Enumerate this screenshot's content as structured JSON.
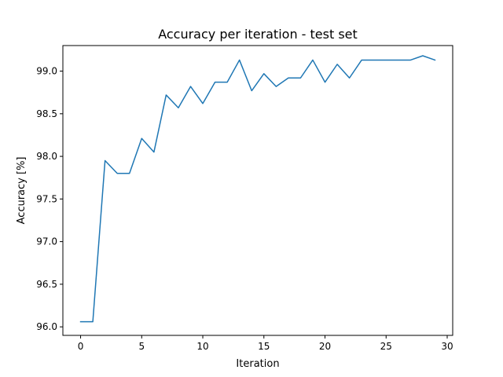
{
  "chart_data": {
    "type": "line",
    "title": "Accuracy per iteration - test set",
    "xlabel": "Iteration",
    "ylabel": "Accuracy [%]",
    "xlim": [
      -1.45,
      30.45
    ],
    "ylim": [
      95.9,
      99.3
    ],
    "grid": false,
    "x_ticks": [
      0,
      5,
      10,
      15,
      20,
      25,
      30
    ],
    "y_ticks": [
      96.0,
      96.5,
      97.0,
      97.5,
      98.0,
      98.5,
      99.0
    ],
    "x_tick_labels": [
      "0",
      "5",
      "10",
      "15",
      "20",
      "25",
      "30"
    ],
    "y_tick_labels": [
      "96.0",
      "96.5",
      "97.0",
      "97.5",
      "98.0",
      "98.5",
      "99.0"
    ],
    "series": [
      {
        "color": "#1f77b4",
        "x": [
          0,
          1,
          2,
          3,
          4,
          5,
          6,
          7,
          8,
          9,
          10,
          11,
          12,
          13,
          14,
          15,
          16,
          17,
          18,
          19,
          20,
          21,
          22,
          23,
          24,
          25,
          26,
          27,
          28,
          29
        ],
        "y": [
          96.06,
          96.06,
          97.95,
          97.8,
          97.8,
          98.21,
          98.05,
          98.72,
          98.57,
          98.82,
          98.62,
          98.87,
          98.87,
          99.13,
          98.77,
          98.97,
          98.82,
          98.92,
          98.92,
          99.13,
          98.87,
          99.08,
          98.92,
          99.13,
          99.13,
          99.13,
          99.13,
          99.13,
          99.18,
          99.13
        ]
      }
    ]
  }
}
